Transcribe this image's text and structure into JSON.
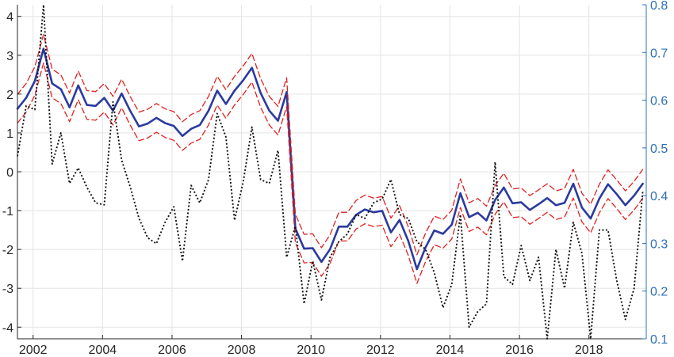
{
  "chart_data": {
    "type": "line",
    "grid": true,
    "x_axis": {
      "ticks": [
        2002,
        2004,
        2006,
        2008,
        2010,
        2012,
        2014,
        2016,
        2018
      ],
      "range": [
        2001.55,
        2019.65
      ]
    },
    "y_left": {
      "ticks": [
        -4,
        -3,
        -2,
        -1,
        0,
        1,
        2,
        3,
        4
      ],
      "range": [
        -4.3,
        4.3
      ]
    },
    "y_right": {
      "ticks": [
        "0.1",
        "0.2",
        "0.3",
        "0.4",
        "0.5",
        "0.6",
        "0.7",
        "0.8"
      ],
      "range": [
        0.1,
        0.8
      ],
      "color": "#2e6fb7"
    },
    "x": [
      2001.55,
      2001.8,
      2002.05,
      2002.3,
      2002.55,
      2002.8,
      2003.05,
      2003.3,
      2003.55,
      2003.8,
      2004.05,
      2004.3,
      2004.55,
      2004.8,
      2005.05,
      2005.3,
      2005.55,
      2005.8,
      2006.05,
      2006.3,
      2006.55,
      2006.8,
      2007.05,
      2007.3,
      2007.55,
      2007.8,
      2008.05,
      2008.3,
      2008.55,
      2008.8,
      2009.05,
      2009.3,
      2009.55,
      2009.8,
      2010.05,
      2010.3,
      2010.55,
      2010.8,
      2011.05,
      2011.3,
      2011.55,
      2011.8,
      2012.05,
      2012.3,
      2012.55,
      2012.8,
      2013.05,
      2013.3,
      2013.55,
      2013.8,
      2014.05,
      2014.3,
      2014.55,
      2014.8,
      2015.05,
      2015.3,
      2015.55,
      2015.8,
      2016.05,
      2016.3,
      2016.55,
      2016.8,
      2017.05,
      2017.3,
      2017.55,
      2017.8,
      2018.05,
      2018.3,
      2018.55,
      2018.8,
      2019.05,
      2019.3,
      2019.55
    ],
    "series": [
      {
        "axis": "right",
        "color": "#2b3a9e",
        "style": "solid",
        "values": [
          0.582,
          0.605,
          0.64,
          0.708,
          0.635,
          0.623,
          0.585,
          0.631,
          0.59,
          0.588,
          0.605,
          0.578,
          0.614,
          0.577,
          0.545,
          0.551,
          0.563,
          0.552,
          0.546,
          0.525,
          0.54,
          0.548,
          0.578,
          0.62,
          0.592,
          0.62,
          0.642,
          0.668,
          0.615,
          0.578,
          0.557,
          0.617,
          0.331,
          0.289,
          0.29,
          0.261,
          0.288,
          0.335,
          0.335,
          0.36,
          0.371,
          0.365,
          0.368,
          0.323,
          0.349,
          0.305,
          0.246,
          0.292,
          0.327,
          0.32,
          0.339,
          0.405,
          0.355,
          0.364,
          0.348,
          0.391,
          0.417,
          0.384,
          0.386,
          0.37,
          0.382,
          0.395,
          0.38,
          0.385,
          0.425,
          0.375,
          0.352,
          0.394,
          0.424,
          0.403,
          0.38,
          0.4,
          0.425
        ]
      },
      {
        "axis": "right",
        "color": "#e02020",
        "style": "dashed",
        "values": [
          0.612,
          0.635,
          0.67,
          0.738,
          0.665,
          0.653,
          0.615,
          0.661,
          0.62,
          0.618,
          0.635,
          0.608,
          0.644,
          0.607,
          0.575,
          0.581,
          0.593,
          0.582,
          0.576,
          0.555,
          0.57,
          0.578,
          0.608,
          0.65,
          0.622,
          0.65,
          0.672,
          0.698,
          0.645,
          0.608,
          0.587,
          0.647,
          0.361,
          0.319,
          0.32,
          0.291,
          0.318,
          0.365,
          0.365,
          0.39,
          0.401,
          0.395,
          0.398,
          0.353,
          0.379,
          0.335,
          0.276,
          0.322,
          0.357,
          0.35,
          0.369,
          0.435,
          0.385,
          0.394,
          0.378,
          0.421,
          0.447,
          0.414,
          0.416,
          0.4,
          0.412,
          0.425,
          0.41,
          0.415,
          0.455,
          0.405,
          0.382,
          0.424,
          0.454,
          0.433,
          0.41,
          0.43,
          0.455
        ]
      },
      {
        "axis": "right",
        "color": "#e02020",
        "style": "dashed",
        "values": [
          0.552,
          0.575,
          0.61,
          0.678,
          0.605,
          0.593,
          0.555,
          0.601,
          0.56,
          0.558,
          0.575,
          0.548,
          0.584,
          0.547,
          0.515,
          0.521,
          0.533,
          0.522,
          0.516,
          0.495,
          0.51,
          0.518,
          0.548,
          0.59,
          0.562,
          0.59,
          0.612,
          0.638,
          0.585,
          0.548,
          0.527,
          0.587,
          0.301,
          0.259,
          0.26,
          0.231,
          0.258,
          0.305,
          0.305,
          0.33,
          0.341,
          0.335,
          0.338,
          0.293,
          0.319,
          0.275,
          0.216,
          0.262,
          0.297,
          0.29,
          0.309,
          0.375,
          0.325,
          0.334,
          0.318,
          0.361,
          0.387,
          0.354,
          0.356,
          0.34,
          0.352,
          0.365,
          0.35,
          0.355,
          0.395,
          0.345,
          0.322,
          0.364,
          0.394,
          0.373,
          0.35,
          0.37,
          0.395
        ]
      },
      {
        "axis": "left",
        "color": "#111111",
        "style": "dotted",
        "values": [
          0.4,
          1.7,
          1.6,
          4.3,
          0.2,
          1.0,
          -0.3,
          0.1,
          -0.4,
          -0.8,
          -0.85,
          1.8,
          0.3,
          -0.4,
          -1.2,
          -1.7,
          -1.85,
          -1.3,
          -0.9,
          -2.3,
          -0.35,
          -0.8,
          -0.2,
          1.5,
          0.9,
          -1.25,
          -0.25,
          1.15,
          -0.2,
          -0.3,
          0.55,
          -2.2,
          -1.4,
          -3.4,
          -2.3,
          -3.3,
          -2.2,
          -1.8,
          -1.6,
          -1.1,
          -1.2,
          -0.8,
          -0.7,
          -0.2,
          -1.1,
          -1.2,
          -1.8,
          -2.0,
          -2.6,
          -3.5,
          -2.9,
          -1.1,
          -4.0,
          -3.6,
          -3.4,
          0.25,
          -2.7,
          -2.9,
          -1.9,
          -2.8,
          -2.2,
          -4.3,
          -2.0,
          -3.0,
          -1.3,
          -2.1,
          -4.4,
          -1.5,
          -1.5,
          -2.8,
          -3.8,
          -3.0,
          -0.5
        ]
      }
    ]
  }
}
